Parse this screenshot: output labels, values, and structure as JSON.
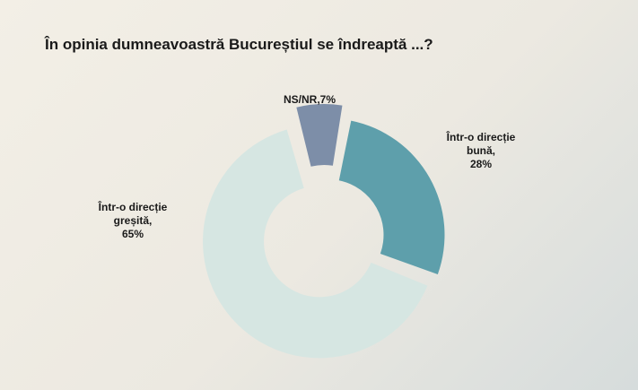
{
  "chart_data": {
    "type": "pie",
    "title": "În opinia dumneavoastră Bucureștiul se îndreaptă ...?",
    "categories": [
      "NS/NR",
      "Într-o direcție bună",
      "Într-o direcție greșită"
    ],
    "values": [
      7,
      28,
      65
    ],
    "value_unit": "%",
    "colors": [
      "#7d8ea8",
      "#5e9fab",
      "#d6e6e2"
    ],
    "labels": [
      [
        "NS/NR,7%"
      ],
      [
        "Într-o direcție",
        "bună,",
        "28%"
      ],
      [
        "Într-o direcție",
        "greșită,",
        "65%"
      ]
    ],
    "legend": "none",
    "style": "donut"
  }
}
